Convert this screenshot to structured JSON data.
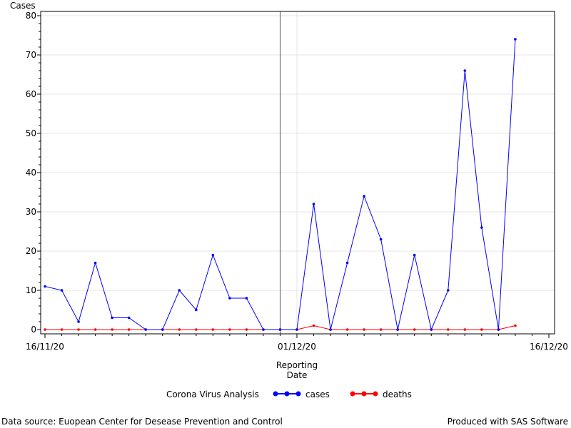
{
  "chart_data": {
    "type": "line",
    "ylabel": "Cases",
    "xlabel_lines": [
      "Reporting",
      "Date"
    ],
    "ylim": [
      0,
      80
    ],
    "y_ticks": [
      0,
      10,
      20,
      30,
      40,
      50,
      60,
      70,
      80
    ],
    "x_range": [
      "2020-11-16",
      "2020-12-16"
    ],
    "x_ticks": [
      {
        "date": "2020-11-16",
        "label": "16/11/20"
      },
      {
        "date": "2020-12-01",
        "label": "01/12/20"
      },
      {
        "date": "2020-12-16",
        "label": "16/12/20"
      }
    ],
    "reference_line": "2020-11-30",
    "grid": true,
    "legend_title": "Corona Virus Analysis",
    "legend_position": "bottom",
    "x": [
      "2020-11-16",
      "2020-11-17",
      "2020-11-18",
      "2020-11-19",
      "2020-11-20",
      "2020-11-21",
      "2020-11-22",
      "2020-11-23",
      "2020-11-24",
      "2020-11-25",
      "2020-11-26",
      "2020-11-27",
      "2020-11-28",
      "2020-11-29",
      "2020-11-30",
      "2020-12-01",
      "2020-12-02",
      "2020-12-03",
      "2020-12-04",
      "2020-12-05",
      "2020-12-06",
      "2020-12-07",
      "2020-12-08",
      "2020-12-09",
      "2020-12-10",
      "2020-12-11",
      "2020-12-12",
      "2020-12-13",
      "2020-12-14",
      "2020-12-15"
    ],
    "series": [
      {
        "name": "cases",
        "color": "#0000ff",
        "values": [
          11,
          10,
          2,
          17,
          3,
          3,
          0,
          0,
          10,
          5,
          19,
          8,
          8,
          0,
          0,
          0,
          32,
          0,
          17,
          34,
          23,
          0,
          19,
          0,
          10,
          66,
          26,
          0,
          74,
          null
        ]
      },
      {
        "name": "deaths",
        "color": "#ff0000",
        "values": [
          0,
          0,
          0,
          0,
          0,
          0,
          0,
          0,
          0,
          0,
          0,
          0,
          0,
          0,
          0,
          0,
          1,
          0,
          0,
          0,
          0,
          0,
          0,
          0,
          0,
          0,
          0,
          0,
          1,
          null
        ]
      }
    ]
  },
  "footer": {
    "left": "Data source: Euopean Center for Desease Prevention and Control",
    "right": "Produced with SAS Software"
  }
}
